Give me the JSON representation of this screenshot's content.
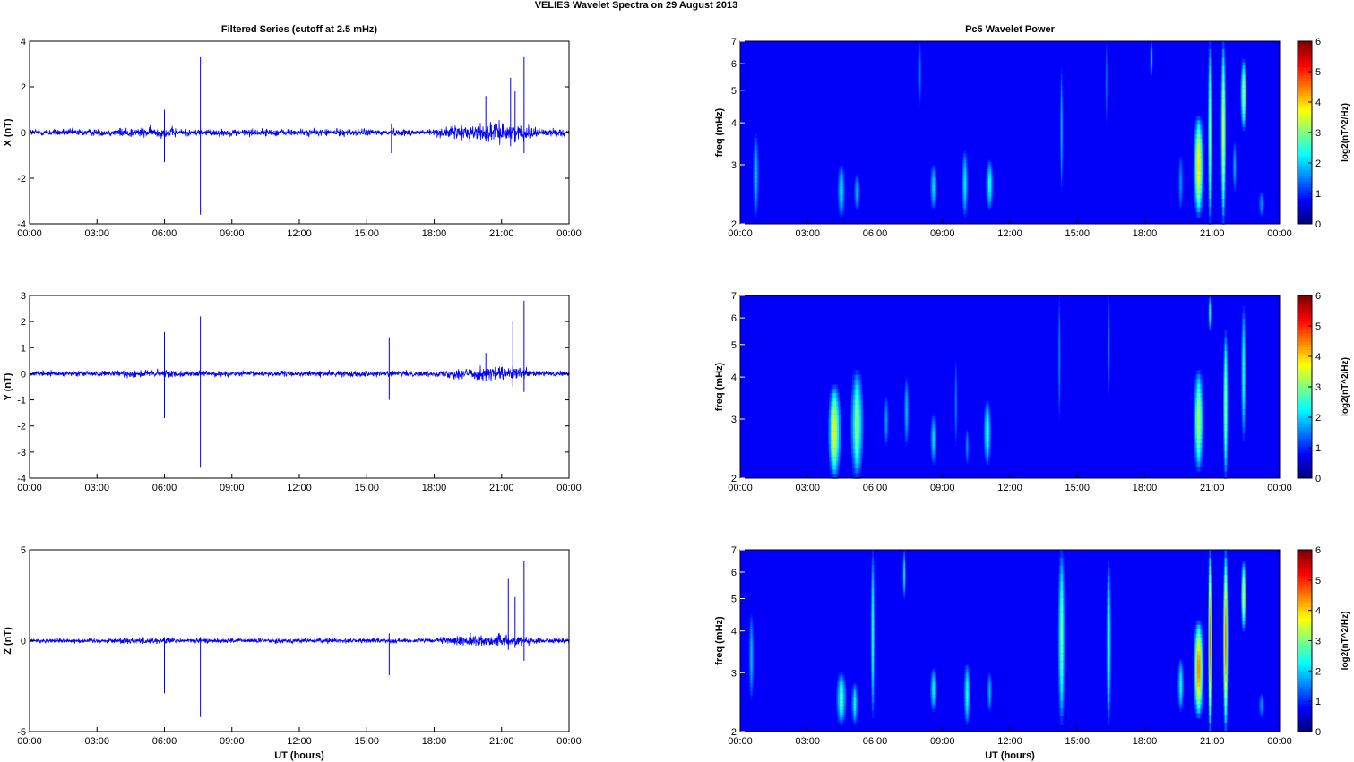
{
  "figure": {
    "title": "VELIES Wavelet Spectra on 29 August    2013",
    "left_title": "Filtered Series (cutoff at 2.5 mHz)",
    "right_title": "Pc5 Wavelet Power"
  },
  "chart_data": [
    {
      "type": "line",
      "panel": "X",
      "ylabel": "X (nT)",
      "xlabel": "",
      "ylim": [
        -4,
        4
      ],
      "yticks": [
        -4,
        -2,
        0,
        2,
        4
      ],
      "xlim_hours": [
        0,
        24
      ],
      "xticks": [
        "00:00",
        "03:00",
        "06:00",
        "09:00",
        "12:00",
        "15:00",
        "18:00",
        "21:00",
        "00:00"
      ],
      "color": "#0000ff",
      "noise_amplitude": 0.15,
      "spikes": [
        {
          "t": 6.0,
          "min": -1.3,
          "max": 1.0
        },
        {
          "t": 7.6,
          "min": -3.6,
          "max": 3.3
        },
        {
          "t": 16.1,
          "min": -0.9,
          "max": 0.4
        },
        {
          "t": 20.3,
          "min": -0.4,
          "max": 1.6
        },
        {
          "t": 21.4,
          "min": -0.6,
          "max": 2.4
        },
        {
          "t": 21.6,
          "min": -0.3,
          "max": 1.8
        },
        {
          "t": 22.0,
          "min": -0.9,
          "max": 3.3
        }
      ],
      "active_interval_hours": [
        18.0,
        23.0
      ]
    },
    {
      "type": "line",
      "panel": "Y",
      "ylabel": "Y (nT)",
      "xlabel": "",
      "ylim": [
        -4,
        3
      ],
      "yticks": [
        -4,
        -3,
        -2,
        -1,
        0,
        1,
        2,
        3
      ],
      "xlim_hours": [
        0,
        24
      ],
      "xticks": [
        "00:00",
        "03:00",
        "06:00",
        "09:00",
        "12:00",
        "15:00",
        "18:00",
        "21:00",
        "00:00"
      ],
      "color": "#0000ff",
      "noise_amplitude": 0.1,
      "spikes": [
        {
          "t": 6.0,
          "min": -1.7,
          "max": 1.6
        },
        {
          "t": 7.6,
          "min": -3.6,
          "max": 2.2
        },
        {
          "t": 16.0,
          "min": -1.0,
          "max": 1.4
        },
        {
          "t": 20.3,
          "min": -0.3,
          "max": 0.8
        },
        {
          "t": 21.5,
          "min": -0.5,
          "max": 2.0
        },
        {
          "t": 22.0,
          "min": -0.7,
          "max": 2.8
        }
      ],
      "active_interval_hours": [
        18.0,
        23.0
      ]
    },
    {
      "type": "line",
      "panel": "Z",
      "ylabel": "Z (nT)",
      "xlabel": "UT (hours)",
      "ylim": [
        -5,
        5
      ],
      "yticks": [
        -5,
        0,
        5
      ],
      "xlim_hours": [
        0,
        24
      ],
      "xticks": [
        "00:00",
        "03:00",
        "06:00",
        "09:00",
        "12:00",
        "15:00",
        "18:00",
        "21:00",
        "00:00"
      ],
      "color": "#0000ff",
      "noise_amplitude": 0.12,
      "spikes": [
        {
          "t": 6.0,
          "min": -2.9,
          "max": 0.2
        },
        {
          "t": 7.6,
          "min": -4.2,
          "max": 0.2
        },
        {
          "t": 16.0,
          "min": -1.9,
          "max": 0.4
        },
        {
          "t": 21.3,
          "min": -0.5,
          "max": 3.4
        },
        {
          "t": 21.6,
          "min": -0.4,
          "max": 2.4
        },
        {
          "t": 22.0,
          "min": -1.1,
          "max": 4.4
        }
      ],
      "active_interval_hours": [
        18.0,
        23.0
      ]
    },
    {
      "type": "heatmap",
      "panel": "X",
      "ylabel": "freq (mHz)",
      "xlabel": "",
      "yscale": "log",
      "ylim": [
        2,
        7
      ],
      "yticks": [
        2,
        3,
        4,
        5,
        6,
        7
      ],
      "xlim_hours": [
        0,
        24
      ],
      "xticks": [
        "00:00",
        "03:00",
        "06:00",
        "09:00",
        "12:00",
        "15:00",
        "18:00",
        "21:00",
        "00:00"
      ],
      "colorbar": {
        "label": "log2(nT^2/Hz)",
        "min": 0,
        "max": 6,
        "ticks": [
          0,
          1,
          2,
          3,
          4,
          5,
          6
        ]
      },
      "blobs": [
        {
          "t": 0.7,
          "f_lo": 2.1,
          "f_hi": 3.7,
          "peak": 1.3,
          "width_h": 0.12
        },
        {
          "t": 4.5,
          "f_lo": 2.1,
          "f_hi": 3.0,
          "peak": 1.6,
          "width_h": 0.15
        },
        {
          "t": 5.2,
          "f_lo": 2.2,
          "f_hi": 2.8,
          "peak": 1.3,
          "width_h": 0.12
        },
        {
          "t": 8.0,
          "f_lo": 4.5,
          "f_hi": 7.0,
          "peak": 0.9,
          "width_h": 0.05
        },
        {
          "t": 8.6,
          "f_lo": 2.2,
          "f_hi": 3.0,
          "peak": 1.5,
          "width_h": 0.13
        },
        {
          "t": 10.0,
          "f_lo": 2.1,
          "f_hi": 3.3,
          "peak": 1.6,
          "width_h": 0.13
        },
        {
          "t": 11.1,
          "f_lo": 2.2,
          "f_hi": 3.1,
          "peak": 1.8,
          "width_h": 0.15
        },
        {
          "t": 14.3,
          "f_lo": 2.5,
          "f_hi": 5.8,
          "peak": 1.3,
          "width_h": 0.06
        },
        {
          "t": 16.3,
          "f_lo": 4.0,
          "f_hi": 7.0,
          "peak": 0.8,
          "width_h": 0.05
        },
        {
          "t": 18.3,
          "f_lo": 5.5,
          "f_hi": 7.0,
          "peak": 1.6,
          "width_h": 0.05
        },
        {
          "t": 19.6,
          "f_lo": 2.2,
          "f_hi": 3.2,
          "peak": 1.0,
          "width_h": 0.1
        },
        {
          "t": 20.4,
          "f_lo": 2.1,
          "f_hi": 4.2,
          "peak": 3.6,
          "width_h": 0.2
        },
        {
          "t": 20.9,
          "f_lo": 2.0,
          "f_hi": 7.0,
          "peak": 2.6,
          "width_h": 0.08
        },
        {
          "t": 21.5,
          "f_lo": 2.0,
          "f_hi": 7.0,
          "peak": 3.2,
          "width_h": 0.1
        },
        {
          "t": 22.4,
          "f_lo": 3.8,
          "f_hi": 6.2,
          "peak": 2.8,
          "width_h": 0.12
        },
        {
          "t": 22.0,
          "f_lo": 2.5,
          "f_hi": 3.5,
          "peak": 1.2,
          "width_h": 0.08
        },
        {
          "t": 23.2,
          "f_lo": 2.1,
          "f_hi": 2.5,
          "peak": 1.0,
          "width_h": 0.12
        }
      ]
    },
    {
      "type": "heatmap",
      "panel": "Y",
      "ylabel": "freq (mHz)",
      "xlabel": "",
      "yscale": "log",
      "ylim": [
        2,
        7
      ],
      "yticks": [
        2,
        3,
        4,
        5,
        6,
        7
      ],
      "xlim_hours": [
        0,
        24
      ],
      "xticks": [
        "00:00",
        "03:00",
        "06:00",
        "09:00",
        "12:00",
        "15:00",
        "18:00",
        "21:00",
        "00:00"
      ],
      "colorbar": {
        "label": "log2(nT^2/Hz)",
        "min": 0,
        "max": 6,
        "ticks": [
          0,
          1,
          2,
          3,
          4,
          5,
          6
        ]
      },
      "blobs": [
        {
          "t": 4.2,
          "f_lo": 2.0,
          "f_hi": 3.8,
          "peak": 3.2,
          "width_h": 0.25
        },
        {
          "t": 5.2,
          "f_lo": 2.0,
          "f_hi": 4.2,
          "peak": 2.6,
          "width_h": 0.25
        },
        {
          "t": 6.5,
          "f_lo": 2.5,
          "f_hi": 3.5,
          "peak": 1.1,
          "width_h": 0.1
        },
        {
          "t": 7.4,
          "f_lo": 2.5,
          "f_hi": 4.0,
          "peak": 1.3,
          "width_h": 0.1
        },
        {
          "t": 8.6,
          "f_lo": 2.2,
          "f_hi": 3.1,
          "peak": 1.5,
          "width_h": 0.12
        },
        {
          "t": 9.6,
          "f_lo": 2.5,
          "f_hi": 4.5,
          "peak": 0.9,
          "width_h": 0.06
        },
        {
          "t": 10.1,
          "f_lo": 2.2,
          "f_hi": 2.8,
          "peak": 1.0,
          "width_h": 0.08
        },
        {
          "t": 11.0,
          "f_lo": 2.2,
          "f_hi": 3.4,
          "peak": 2.0,
          "width_h": 0.15
        },
        {
          "t": 14.2,
          "f_lo": 3.0,
          "f_hi": 7.0,
          "peak": 1.0,
          "width_h": 0.05
        },
        {
          "t": 16.4,
          "f_lo": 3.5,
          "f_hi": 7.0,
          "peak": 0.8,
          "width_h": 0.05
        },
        {
          "t": 20.4,
          "f_lo": 2.1,
          "f_hi": 4.2,
          "peak": 2.9,
          "width_h": 0.2
        },
        {
          "t": 20.9,
          "f_lo": 5.5,
          "f_hi": 7.0,
          "peak": 2.0,
          "width_h": 0.06
        },
        {
          "t": 21.6,
          "f_lo": 2.0,
          "f_hi": 5.5,
          "peak": 2.8,
          "width_h": 0.1
        },
        {
          "t": 22.4,
          "f_lo": 2.6,
          "f_hi": 6.5,
          "peak": 1.9,
          "width_h": 0.1
        }
      ]
    },
    {
      "type": "heatmap",
      "panel": "Z",
      "ylabel": "freq (mHz)",
      "xlabel": "UT (hours)",
      "yscale": "log",
      "ylim": [
        2,
        7
      ],
      "yticks": [
        2,
        3,
        4,
        5,
        6,
        7
      ],
      "xlim_hours": [
        0,
        24
      ],
      "xticks": [
        "00:00",
        "03:00",
        "06:00",
        "09:00",
        "12:00",
        "15:00",
        "18:00",
        "21:00",
        "00:00"
      ],
      "colorbar": {
        "label": "log2(nT^2/Hz)",
        "min": 0,
        "max": 6,
        "ticks": [
          0,
          1,
          2,
          3,
          4,
          5,
          6
        ]
      },
      "blobs": [
        {
          "t": 0.5,
          "f_lo": 2.5,
          "f_hi": 4.5,
          "peak": 1.3,
          "width_h": 0.1
        },
        {
          "t": 4.5,
          "f_lo": 2.1,
          "f_hi": 3.0,
          "peak": 2.2,
          "width_h": 0.2
        },
        {
          "t": 5.1,
          "f_lo": 2.1,
          "f_hi": 2.8,
          "peak": 1.7,
          "width_h": 0.13
        },
        {
          "t": 5.9,
          "f_lo": 2.2,
          "f_hi": 7.0,
          "peak": 2.0,
          "width_h": 0.08
        },
        {
          "t": 7.3,
          "f_lo": 5.0,
          "f_hi": 7.0,
          "peak": 1.8,
          "width_h": 0.06
        },
        {
          "t": 8.6,
          "f_lo": 2.3,
          "f_hi": 3.1,
          "peak": 1.7,
          "width_h": 0.13
        },
        {
          "t": 10.1,
          "f_lo": 2.1,
          "f_hi": 3.2,
          "peak": 1.9,
          "width_h": 0.13
        },
        {
          "t": 11.1,
          "f_lo": 2.3,
          "f_hi": 3.0,
          "peak": 1.3,
          "width_h": 0.1
        },
        {
          "t": 14.3,
          "f_lo": 2.1,
          "f_hi": 7.0,
          "peak": 2.4,
          "width_h": 0.14
        },
        {
          "t": 16.4,
          "f_lo": 2.1,
          "f_hi": 6.5,
          "peak": 1.9,
          "width_h": 0.1
        },
        {
          "t": 19.6,
          "f_lo": 2.3,
          "f_hi": 3.3,
          "peak": 1.8,
          "width_h": 0.12
        },
        {
          "t": 20.4,
          "f_lo": 2.2,
          "f_hi": 4.3,
          "peak": 4.2,
          "width_h": 0.2
        },
        {
          "t": 20.9,
          "f_lo": 2.0,
          "f_hi": 7.0,
          "peak": 4.6,
          "width_h": 0.07
        },
        {
          "t": 21.6,
          "f_lo": 2.0,
          "f_hi": 7.0,
          "peak": 4.4,
          "width_h": 0.1
        },
        {
          "t": 22.4,
          "f_lo": 4.0,
          "f_hi": 6.5,
          "peak": 3.2,
          "width_h": 0.1
        },
        {
          "t": 23.2,
          "f_lo": 2.2,
          "f_hi": 2.6,
          "peak": 1.0,
          "width_h": 0.12
        }
      ]
    }
  ]
}
